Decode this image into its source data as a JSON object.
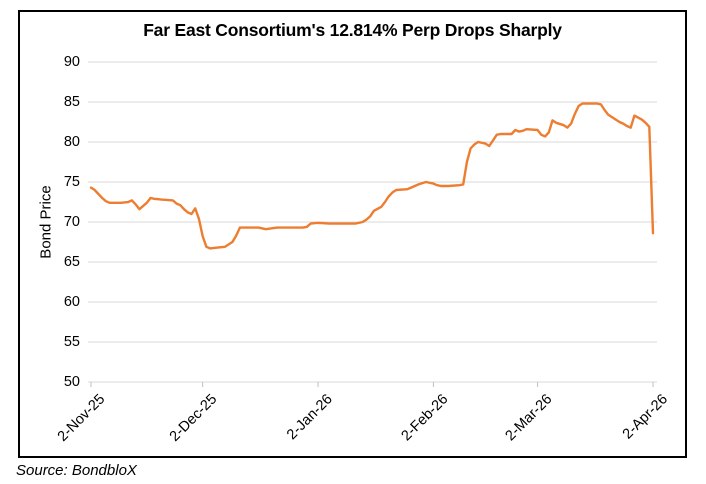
{
  "source": "Source: BondbloX",
  "colors": {
    "line": "#ED7D31",
    "gridline": "#D9D9D9",
    "axis_tick": "#BFBFBF",
    "text": "#000000",
    "border": "#000000",
    "background": "#FFFFFF"
  },
  "chart_data": {
    "type": "line",
    "title": "Far East Consortium's 12.814% Perp Drops Sharply",
    "xlabel": "",
    "ylabel": "Bond Price",
    "ylim": [
      50,
      90
    ],
    "y_ticks": [
      90,
      85,
      80,
      75,
      70,
      65,
      60,
      55,
      50
    ],
    "x_ticks": [
      "2-Nov-25",
      "2-Dec-25",
      "2-Jan-26",
      "2-Feb-26",
      "2-Mar-26",
      "2-Apr-26"
    ],
    "grid": "horizontal",
    "legend": "none",
    "series": [
      {
        "name": "Bond Price",
        "points": [
          [
            "2-Nov-25",
            74.3
          ],
          [
            "3-Nov-25",
            74.0
          ],
          [
            "4-Nov-25",
            73.5
          ],
          [
            "5-Nov-25",
            73.0
          ],
          [
            "6-Nov-25",
            72.6
          ],
          [
            "7-Nov-25",
            72.4
          ],
          [
            "10-Nov-25",
            72.4
          ],
          [
            "12-Nov-25",
            72.5
          ],
          [
            "13-Nov-25",
            72.7
          ],
          [
            "14-Nov-25",
            72.2
          ],
          [
            "15-Nov-25",
            71.6
          ],
          [
            "17-Nov-25",
            72.4
          ],
          [
            "18-Nov-25",
            73.0
          ],
          [
            "19-Nov-25",
            72.9
          ],
          [
            "21-Nov-25",
            72.8
          ],
          [
            "24-Nov-25",
            72.7
          ],
          [
            "25-Nov-25",
            72.3
          ],
          [
            "26-Nov-25",
            72.1
          ],
          [
            "27-Nov-25",
            71.6
          ],
          [
            "28-Nov-25",
            71.2
          ],
          [
            "29-Nov-25",
            71.0
          ],
          [
            "30-Nov-25",
            71.7
          ],
          [
            "1-Dec-25",
            70.4
          ],
          [
            "2-Dec-25",
            68.2
          ],
          [
            "3-Dec-25",
            66.9
          ],
          [
            "4-Dec-25",
            66.7
          ],
          [
            "6-Dec-25",
            66.8
          ],
          [
            "8-Dec-25",
            66.9
          ],
          [
            "9-Dec-25",
            67.2
          ],
          [
            "10-Dec-25",
            67.5
          ],
          [
            "11-Dec-25",
            68.3
          ],
          [
            "12-Dec-25",
            69.3
          ],
          [
            "15-Dec-25",
            69.3
          ],
          [
            "17-Dec-25",
            69.3
          ],
          [
            "19-Dec-25",
            69.1
          ],
          [
            "22-Dec-25",
            69.3
          ],
          [
            "24-Dec-25",
            69.3
          ],
          [
            "29-Dec-25",
            69.3
          ],
          [
            "30-Dec-25",
            69.4
          ],
          [
            "31-Dec-25",
            69.8
          ],
          [
            "2-Jan-26",
            69.9
          ],
          [
            "5-Jan-26",
            69.8
          ],
          [
            "8-Jan-26",
            69.8
          ],
          [
            "12-Jan-26",
            69.8
          ],
          [
            "14-Jan-26",
            70.0
          ],
          [
            "15-Jan-26",
            70.3
          ],
          [
            "16-Jan-26",
            70.7
          ],
          [
            "17-Jan-26",
            71.4
          ],
          [
            "19-Jan-26",
            71.9
          ],
          [
            "20-Jan-26",
            72.5
          ],
          [
            "21-Jan-26",
            73.2
          ],
          [
            "22-Jan-26",
            73.7
          ],
          [
            "23-Jan-26",
            74.0
          ],
          [
            "26-Jan-26",
            74.1
          ],
          [
            "27-Jan-26",
            74.3
          ],
          [
            "29-Jan-26",
            74.7
          ],
          [
            "31-Jan-26",
            75.0
          ],
          [
            "2-Feb-26",
            74.8
          ],
          [
            "3-Feb-26",
            74.6
          ],
          [
            "4-Feb-26",
            74.5
          ],
          [
            "6-Feb-26",
            74.5
          ],
          [
            "9-Feb-26",
            74.6
          ],
          [
            "10-Feb-26",
            74.7
          ],
          [
            "11-Feb-26",
            77.5
          ],
          [
            "12-Feb-26",
            79.2
          ],
          [
            "13-Feb-26",
            79.7
          ],
          [
            "14-Feb-26",
            80.0
          ],
          [
            "16-Feb-26",
            79.8
          ],
          [
            "17-Feb-26",
            79.5
          ],
          [
            "18-Feb-26",
            80.2
          ],
          [
            "19-Feb-26",
            80.9
          ],
          [
            "20-Feb-26",
            81.0
          ],
          [
            "23-Feb-26",
            81.0
          ],
          [
            "24-Feb-26",
            81.5
          ],
          [
            "25-Feb-26",
            81.3
          ],
          [
            "26-Feb-26",
            81.4
          ],
          [
            "27-Feb-26",
            81.6
          ],
          [
            "2-Mar-26",
            81.5
          ],
          [
            "3-Mar-26",
            80.9
          ],
          [
            "4-Mar-26",
            80.7
          ],
          [
            "5-Mar-26",
            81.2
          ],
          [
            "6-Mar-26",
            82.7
          ],
          [
            "7-Mar-26",
            82.4
          ],
          [
            "9-Mar-26",
            82.1
          ],
          [
            "10-Mar-26",
            81.8
          ],
          [
            "11-Mar-26",
            82.3
          ],
          [
            "12-Mar-26",
            83.5
          ],
          [
            "13-Mar-26",
            84.5
          ],
          [
            "14-Mar-26",
            84.8
          ],
          [
            "16-Mar-26",
            84.8
          ],
          [
            "18-Mar-26",
            84.8
          ],
          [
            "19-Mar-26",
            84.7
          ],
          [
            "20-Mar-26",
            84.0
          ],
          [
            "21-Mar-26",
            83.4
          ],
          [
            "23-Mar-26",
            82.8
          ],
          [
            "24-Mar-26",
            82.5
          ],
          [
            "25-Mar-26",
            82.3
          ],
          [
            "26-Mar-26",
            82.0
          ],
          [
            "27-Mar-26",
            81.8
          ],
          [
            "28-Mar-26",
            83.3
          ],
          [
            "30-Mar-26",
            82.8
          ],
          [
            "31-Mar-26",
            82.4
          ],
          [
            "1-Apr-26",
            81.9
          ],
          [
            "2-Apr-26",
            68.6
          ]
        ]
      }
    ]
  }
}
